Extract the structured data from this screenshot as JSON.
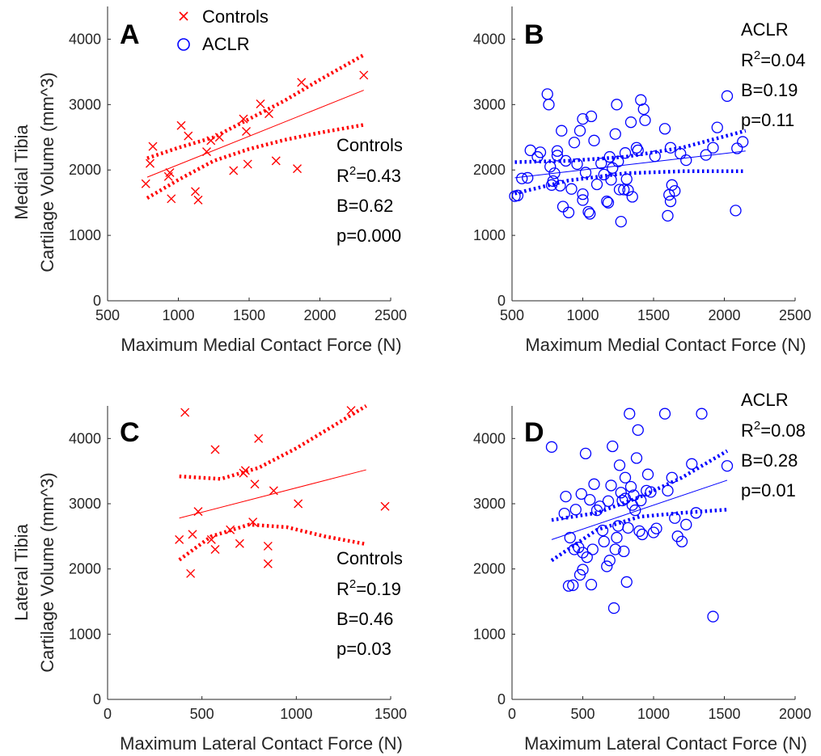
{
  "colors": {
    "controls": "#ff0000",
    "aclr": "#0000ff",
    "axis": "#262626"
  },
  "legend": {
    "items": [
      {
        "label": "Controls",
        "marker": "x",
        "color": "#ff0000"
      },
      {
        "label": "ACLR",
        "marker": "o",
        "color": "#0000ff"
      }
    ],
    "placement": "top, inside panel A"
  },
  "y_label_rows": {
    "top": "Medial Tibia",
    "bottom": "Lateral Tibia",
    "shared": "Cartilage Volume (mm^3)"
  },
  "chart_data": [
    {
      "panel": "A",
      "type": "scatter",
      "xlabel": "Maximum Medial Contact Force (N)",
      "ylabel": [
        "Medial Tibia",
        "Cartilage Volume (mm^3)"
      ],
      "xlim": [
        500,
        2500
      ],
      "ylim": [
        0,
        4500
      ],
      "xticks": [
        500,
        1000,
        1500,
        2000,
        2500
      ],
      "yticks": [
        0,
        1000,
        2000,
        3000,
        4000
      ],
      "grid": false,
      "series": [
        {
          "name": "Controls",
          "marker": "x",
          "color": "#ff0000",
          "points": [
            [
              770,
              1790
            ],
            [
              800,
              2100
            ],
            [
              820,
              2360
            ],
            [
              930,
              1900
            ],
            [
              940,
              1960
            ],
            [
              950,
              1560
            ],
            [
              1020,
              2680
            ],
            [
              1070,
              2520
            ],
            [
              1120,
              1670
            ],
            [
              1140,
              1540
            ],
            [
              1200,
              2280
            ],
            [
              1230,
              2450
            ],
            [
              1290,
              2500
            ],
            [
              1390,
              1990
            ],
            [
              1460,
              2780
            ],
            [
              1480,
              2590
            ],
            [
              1490,
              2090
            ],
            [
              1580,
              3010
            ],
            [
              1640,
              2860
            ],
            [
              1690,
              2140
            ],
            [
              1840,
              2020
            ],
            [
              1870,
              3340
            ],
            [
              2310,
              3450
            ]
          ]
        }
      ],
      "fit": {
        "x": [
          780,
          2310
        ],
        "y": [
          1890,
          3220
        ]
      },
      "ci_upper": {
        "x": [
          780,
          1000,
          1250,
          1500,
          1750,
          2000,
          2310
        ],
        "y": [
          2180,
          2340,
          2500,
          2780,
          3060,
          3380,
          3760
        ]
      },
      "ci_lower": {
        "x": [
          780,
          1000,
          1250,
          1500,
          1750,
          2000,
          2310
        ],
        "y": [
          1570,
          1850,
          2140,
          2320,
          2460,
          2570,
          2690
        ]
      },
      "annotations": {
        "group": "Controls",
        "r2_label": "R",
        "r2_sup": "2",
        "r2_value": "=0.43",
        "b": "B=0.62",
        "p": "p=0.000"
      }
    },
    {
      "panel": "B",
      "type": "scatter",
      "xlabel": "Maximum Medial Contact Force (N)",
      "ylabel": "",
      "xlim": [
        500,
        2500
      ],
      "ylim": [
        0,
        4500
      ],
      "xticks": [
        500,
        1000,
        1500,
        2000,
        2500
      ],
      "yticks": [
        0,
        1000,
        2000,
        3000,
        4000
      ],
      "grid": false,
      "series": [
        {
          "name": "ACLR",
          "marker": "o",
          "color": "#0000ff",
          "points": [
            [
              520,
              1600
            ],
            [
              540,
              1610
            ],
            [
              570,
              1870
            ],
            [
              610,
              1880
            ],
            [
              630,
              2300
            ],
            [
              680,
              2200
            ],
            [
              700,
              2270
            ],
            [
              750,
              3160
            ],
            [
              760,
              3000
            ],
            [
              770,
              2050
            ],
            [
              780,
              1770
            ],
            [
              790,
              1830
            ],
            [
              800,
              1950
            ],
            [
              820,
              2220
            ],
            [
              820,
              2290
            ],
            [
              840,
              1760
            ],
            [
              850,
              2600
            ],
            [
              860,
              1440
            ],
            [
              880,
              2140
            ],
            [
              900,
              1350
            ],
            [
              920,
              1710
            ],
            [
              940,
              2420
            ],
            [
              960,
              2090
            ],
            [
              980,
              2600
            ],
            [
              1000,
              1540
            ],
            [
              1000,
              1630
            ],
            [
              1000,
              2780
            ],
            [
              1020,
              1960
            ],
            [
              1040,
              1360
            ],
            [
              1050,
              1330
            ],
            [
              1060,
              2820
            ],
            [
              1080,
              2450
            ],
            [
              1100,
              1780
            ],
            [
              1130,
              2100
            ],
            [
              1150,
              1930
            ],
            [
              1170,
              1520
            ],
            [
              1180,
              1500
            ],
            [
              1190,
              2200
            ],
            [
              1200,
              1850
            ],
            [
              1210,
              2030
            ],
            [
              1230,
              2550
            ],
            [
              1240,
              3000
            ],
            [
              1250,
              2130
            ],
            [
              1260,
              1700
            ],
            [
              1270,
              1210
            ],
            [
              1290,
              1700
            ],
            [
              1300,
              2260
            ],
            [
              1310,
              1860
            ],
            [
              1320,
              1690
            ],
            [
              1340,
              2730
            ],
            [
              1350,
              1590
            ],
            [
              1380,
              2340
            ],
            [
              1390,
              2300
            ],
            [
              1410,
              3070
            ],
            [
              1430,
              2930
            ],
            [
              1440,
              2760
            ],
            [
              1510,
              2210
            ],
            [
              1580,
              2630
            ],
            [
              1600,
              1300
            ],
            [
              1610,
              1620
            ],
            [
              1620,
              2340
            ],
            [
              1620,
              1520
            ],
            [
              1630,
              1770
            ],
            [
              1650,
              1680
            ],
            [
              1690,
              2250
            ],
            [
              1730,
              2150
            ],
            [
              1870,
              2230
            ],
            [
              1920,
              2340
            ],
            [
              1950,
              2650
            ],
            [
              2020,
              3130
            ],
            [
              2080,
              1380
            ],
            [
              2090,
              2330
            ],
            [
              2130,
              2430
            ]
          ]
        }
      ],
      "fit": {
        "x": [
          520,
          2150
        ],
        "y": [
          1880,
          2290
        ]
      },
      "ci_upper": {
        "x": [
          520,
          900,
          1300,
          1700,
          2150
        ],
        "y": [
          2120,
          2140,
          2200,
          2340,
          2600
        ]
      },
      "ci_lower": {
        "x": [
          520,
          900,
          1300,
          1700,
          2150
        ],
        "y": [
          1640,
          1840,
          1950,
          1980,
          1980
        ]
      },
      "annotations": {
        "group": "ACLR",
        "r2_label": "R",
        "r2_sup": "2",
        "r2_value": "=0.04",
        "b": "B=0.19",
        "p": "p=0.11"
      }
    },
    {
      "panel": "C",
      "type": "scatter",
      "xlabel": "Maximum Lateral Contact Force (N)",
      "ylabel": [
        "Lateral Tibia",
        "Cartilage Volume (mm^3)"
      ],
      "xlim": [
        0,
        1500
      ],
      "ylim": [
        0,
        4500
      ],
      "xticks": [
        0,
        500,
        1000,
        1500
      ],
      "yticks": [
        0,
        1000,
        2000,
        3000,
        4000
      ],
      "grid": false,
      "series": [
        {
          "name": "Controls",
          "marker": "x",
          "color": "#ff0000",
          "points": [
            [
              380,
              2450
            ],
            [
              410,
              4400
            ],
            [
              440,
              1930
            ],
            [
              450,
              2530
            ],
            [
              480,
              2880
            ],
            [
              550,
              2450
            ],
            [
              570,
              2300
            ],
            [
              570,
              3830
            ],
            [
              650,
              2600
            ],
            [
              700,
              2390
            ],
            [
              720,
              3470
            ],
            [
              730,
              3510
            ],
            [
              770,
              2720
            ],
            [
              780,
              3300
            ],
            [
              800,
              4000
            ],
            [
              850,
              2350
            ],
            [
              850,
              2080
            ],
            [
              880,
              3200
            ],
            [
              1010,
              3000
            ],
            [
              1290,
              4430
            ],
            [
              1470,
              2960
            ]
          ]
        }
      ],
      "fit": {
        "x": [
          380,
          1370
        ],
        "y": [
          2780,
          3520
        ]
      },
      "ci_upper": {
        "x": [
          380,
          600,
          800,
          1000,
          1200,
          1370
        ],
        "y": [
          3420,
          3380,
          3550,
          3850,
          4200,
          4500
        ]
      },
      "ci_lower": {
        "x": [
          380,
          550,
          750,
          950,
          1150,
          1370
        ],
        "y": [
          2140,
          2500,
          2680,
          2640,
          2500,
          2380
        ]
      },
      "annotations": {
        "group": "Controls",
        "r2_label": "R",
        "r2_sup": "2",
        "r2_value": "=0.19",
        "b": "B=0.46",
        "p": "p=0.03"
      }
    },
    {
      "panel": "D",
      "type": "scatter",
      "xlabel": "Maximum Lateral Contact Force (N)",
      "ylabel": "",
      "xlim": [
        0,
        2000
      ],
      "ylim": [
        0,
        4500
      ],
      "xticks": [
        0,
        500,
        1000,
        1500,
        2000
      ],
      "yticks": [
        0,
        1000,
        2000,
        3000,
        4000
      ],
      "grid": false,
      "series": [
        {
          "name": "ACLR",
          "marker": "o",
          "color": "#0000ff",
          "points": [
            [
              280,
              3870
            ],
            [
              370,
              2850
            ],
            [
              380,
              3110
            ],
            [
              400,
              1740
            ],
            [
              410,
              2480
            ],
            [
              430,
              1750
            ],
            [
              440,
              2300
            ],
            [
              450,
              2910
            ],
            [
              470,
              2330
            ],
            [
              480,
              1910
            ],
            [
              490,
              3150
            ],
            [
              500,
              2250
            ],
            [
              500,
              1990
            ],
            [
              520,
              3770
            ],
            [
              530,
              2180
            ],
            [
              550,
              3060
            ],
            [
              560,
              1760
            ],
            [
              570,
              2300
            ],
            [
              580,
              3300
            ],
            [
              600,
              2900
            ],
            [
              620,
              2960
            ],
            [
              640,
              2590
            ],
            [
              650,
              2420
            ],
            [
              670,
              2040
            ],
            [
              680,
              3040
            ],
            [
              690,
              2130
            ],
            [
              700,
              3280
            ],
            [
              710,
              3880
            ],
            [
              720,
              1400
            ],
            [
              730,
              2300
            ],
            [
              740,
              2480
            ],
            [
              750,
              2660
            ],
            [
              760,
              3590
            ],
            [
              770,
              3170
            ],
            [
              780,
              3050
            ],
            [
              790,
              2270
            ],
            [
              800,
              3400
            ],
            [
              800,
              3080
            ],
            [
              810,
              1800
            ],
            [
              820,
              2630
            ],
            [
              830,
              4380
            ],
            [
              840,
              3260
            ],
            [
              850,
              2980
            ],
            [
              860,
              3130
            ],
            [
              870,
              2900
            ],
            [
              880,
              3700
            ],
            [
              890,
              4130
            ],
            [
              900,
              2580
            ],
            [
              910,
              3050
            ],
            [
              920,
              2530
            ],
            [
              950,
              3200
            ],
            [
              960,
              3450
            ],
            [
              980,
              3180
            ],
            [
              1000,
              2560
            ],
            [
              1020,
              2620
            ],
            [
              1080,
              4380
            ],
            [
              1100,
              3200
            ],
            [
              1130,
              3400
            ],
            [
              1150,
              2780
            ],
            [
              1170,
              2500
            ],
            [
              1200,
              2420
            ],
            [
              1230,
              2680
            ],
            [
              1270,
              3610
            ],
            [
              1300,
              2860
            ],
            [
              1340,
              4380
            ],
            [
              1420,
              1270
            ],
            [
              1520,
              3580
            ]
          ]
        }
      ],
      "fit": {
        "x": [
          280,
          1520
        ],
        "y": [
          2450,
          3360
        ]
      },
      "ci_upper": {
        "x": [
          280,
          600,
          900,
          1200,
          1520
        ],
        "y": [
          2750,
          2860,
          3100,
          3400,
          3810
        ]
      },
      "ci_lower": {
        "x": [
          280,
          600,
          900,
          1200,
          1520
        ],
        "y": [
          2130,
          2600,
          2800,
          2860,
          2910
        ]
      },
      "annotations": {
        "group": "ACLR",
        "r2_label": "R",
        "r2_sup": "2",
        "r2_value": "=0.08",
        "b": "B=0.28",
        "p": "p=0.01"
      }
    }
  ]
}
